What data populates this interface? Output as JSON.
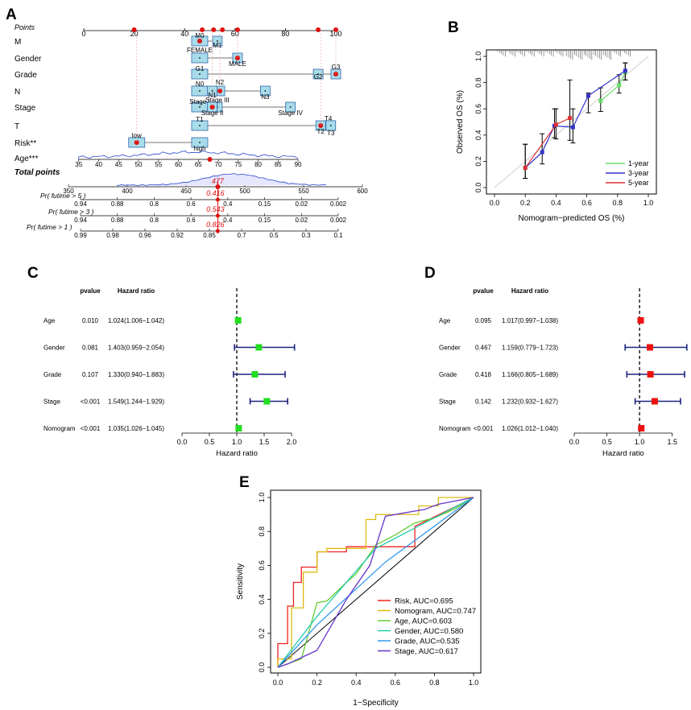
{
  "figure_title": "",
  "panels": {
    "A": "A",
    "B": "B",
    "C": "C",
    "D": "D",
    "E": "E"
  },
  "chart_data": [
    {
      "panel": "A",
      "type": "nomogram",
      "points_label": "Points",
      "points_ticks": [
        "0",
        "20",
        "40",
        "60",
        "80",
        "100"
      ],
      "variables": [
        {
          "name": "M",
          "levels": [
            "M0",
            "M1"
          ]
        },
        {
          "name": "Gender",
          "levels": [
            "FEMALE",
            "MALE"
          ]
        },
        {
          "name": "Grade",
          "levels": [
            "G1",
            "G2",
            "G3"
          ]
        },
        {
          "name": "N",
          "levels": [
            "N0",
            "N2",
            "N1",
            "N3"
          ]
        },
        {
          "name": "Stage",
          "levels": [
            "Stage I",
            "Stage III",
            "Stage II",
            "Stage IV"
          ]
        },
        {
          "name": "T",
          "levels": [
            "T1",
            "T4",
            "T2",
            "T3"
          ]
        },
        {
          "name": "Risk**",
          "levels": [
            "low",
            "high"
          ]
        },
        {
          "name": "Age***",
          "levels": [
            "35",
            "40",
            "45",
            "50",
            "55",
            "60",
            "65",
            "70",
            "75",
            "80",
            "85",
            "90"
          ]
        }
      ],
      "total_points_label": "Total points",
      "total_ticks": [
        "350",
        "400",
        "450",
        "500",
        "550",
        "600"
      ],
      "total_value": "477",
      "survival_axes": [
        {
          "label": "Pr( futime > 5 )",
          "ticks": [
            "0.94",
            "0.88",
            "0.8",
            "0.6",
            "0.4",
            "0.15",
            "0.02",
            "0.002"
          ],
          "value": "0.416"
        },
        {
          "label": "Pr( futime > 3 )",
          "ticks": [
            "0.94",
            "0.88",
            "0.8",
            "0.6",
            "0.4",
            "0.15",
            "0.02",
            "0.002"
          ],
          "value": "0.543"
        },
        {
          "label": "Pr( futime > 1 )",
          "ticks": [
            "0.99",
            "0.98",
            "0.96",
            "0.92",
            "0.85",
            "0.7",
            "0.5",
            "0.3",
            "0.1"
          ],
          "value": "0.826"
        }
      ]
    },
    {
      "panel": "B",
      "type": "line",
      "title": "",
      "xlabel": "Nomogram−predicted OS (%)",
      "ylabel": "Observed OS (%)",
      "xlim": [
        0,
        1
      ],
      "ylim": [
        0,
        1
      ],
      "xticks": [
        "0.0",
        "0.2",
        "0.4",
        "0.6",
        "0.8",
        "1.0"
      ],
      "yticks": [
        "0.0",
        "0.2",
        "0.4",
        "0.6",
        "0.8",
        "1.0"
      ],
      "series": [
        {
          "name": "1-year",
          "color": "#66dd66",
          "x": [
            0.69,
            0.81,
            0.85
          ],
          "y": [
            0.66,
            0.78,
            0.88
          ],
          "err_lo": [
            0.58,
            0.72,
            0.82
          ],
          "err_hi": [
            0.76,
            0.86,
            0.95
          ]
        },
        {
          "name": "3-year",
          "color": "#3333cc",
          "x": [
            0.2,
            0.31,
            0.39,
            0.51,
            0.61,
            0.85
          ],
          "y": [
            0.15,
            0.27,
            0.47,
            0.46,
            0.7,
            0.89
          ],
          "err_lo": [
            0.07,
            0.18,
            0.38,
            0.34,
            0.57,
            0.82
          ],
          "err_hi": [
            0.33,
            0.41,
            0.6,
            0.6,
            0.72,
            0.95
          ]
        },
        {
          "name": "5-year",
          "color": "#dd3333",
          "x": [
            0.2,
            0.4,
            0.49
          ],
          "y": [
            0.15,
            0.48,
            0.53
          ],
          "err_lo": [
            0.07,
            0.37,
            0.36
          ],
          "err_hi": [
            0.33,
            0.6,
            0.82
          ]
        }
      ]
    },
    {
      "panel": "C",
      "type": "forest",
      "pvalue_header": "pvalue",
      "hr_header": "Hazard ratio",
      "xlabel": "Hazard ratio",
      "xlim": [
        0,
        2.0
      ],
      "xticks": [
        "0.0",
        "0.5",
        "1.0",
        "1.5",
        "2.0"
      ],
      "marker_color": "#22dd22",
      "rows": [
        {
          "name": "Age",
          "p": "0.010",
          "text": "1.024(1.006−1.042)",
          "hr": 1.024,
          "lo": 1.006,
          "hi": 1.042
        },
        {
          "name": "Gender",
          "p": "0.081",
          "text": "1.403(0.959−2.054)",
          "hr": 1.403,
          "lo": 0.959,
          "hi": 2.054
        },
        {
          "name": "Grade",
          "p": "0.107",
          "text": "1.330(0.940−1.883)",
          "hr": 1.33,
          "lo": 0.94,
          "hi": 1.883
        },
        {
          "name": "Stage",
          "p": "<0.001",
          "text": "1.549(1.244−1.929)",
          "hr": 1.549,
          "lo": 1.244,
          "hi": 1.929
        },
        {
          "name": "Nomogram",
          "p": "<0.001",
          "text": "1.035(1.026−1.045)",
          "hr": 1.035,
          "lo": 1.026,
          "hi": 1.045
        }
      ]
    },
    {
      "panel": "D",
      "type": "forest",
      "pvalue_header": "pvalue",
      "hr_header": "Hazard ratio",
      "xlabel": "Hazard ratio",
      "xlim": [
        0,
        1.75
      ],
      "xticks": [
        "0.0",
        "0.5",
        "1.0",
        "1.5"
      ],
      "marker_color": "#ee1111",
      "rows": [
        {
          "name": "Age",
          "p": "0.095",
          "text": "1.017(0.997−1.038)",
          "hr": 1.017,
          "lo": 0.997,
          "hi": 1.038
        },
        {
          "name": "Gender",
          "p": "0.467",
          "text": "1.159(0.779−1.723)",
          "hr": 1.159,
          "lo": 0.779,
          "hi": 1.723
        },
        {
          "name": "Grade",
          "p": "0.418",
          "text": "1.166(0.805−1.689)",
          "hr": 1.166,
          "lo": 0.805,
          "hi": 1.689
        },
        {
          "name": "Stage",
          "p": "0.142",
          "text": "1.232(0.932−1.627)",
          "hr": 1.232,
          "lo": 0.932,
          "hi": 1.627
        },
        {
          "name": "Nomogram",
          "p": "<0.001",
          "text": "1.026(1.012−1.040)",
          "hr": 1.026,
          "lo": 1.012,
          "hi": 1.04
        }
      ]
    },
    {
      "panel": "E",
      "type": "line",
      "title": "",
      "xlabel": "1−Specificity",
      "ylabel": "Sensitivity",
      "xlim": [
        0,
        1
      ],
      "ylim": [
        0,
        1
      ],
      "xticks": [
        "0.0",
        "0.2",
        "0.4",
        "0.6",
        "0.8",
        "1.0"
      ],
      "yticks": [
        "0.0",
        "0.2",
        "0.4",
        "0.6",
        "0.8",
        "1.0"
      ],
      "series": [
        {
          "name": "Risk, AUC=0.695",
          "color": "#ee2222",
          "x": [
            0,
            0,
            0.05,
            0.05,
            0.08,
            0.08,
            0.12,
            0.12,
            0.2,
            0.2,
            0.35,
            0.35,
            0.7,
            0.7,
            0.95,
            1.0
          ],
          "y": [
            0,
            0.14,
            0.14,
            0.36,
            0.36,
            0.5,
            0.5,
            0.59,
            0.59,
            0.68,
            0.68,
            0.71,
            0.71,
            0.83,
            0.97,
            1.0
          ]
        },
        {
          "name": "Nomogram, AUC=0.747",
          "color": "#ddbb11",
          "x": [
            0,
            0,
            0.07,
            0.07,
            0.13,
            0.13,
            0.2,
            0.2,
            0.25,
            0.25,
            0.45,
            0.45,
            0.5,
            0.5,
            0.72,
            0.72,
            0.82,
            0.82,
            1.0
          ],
          "y": [
            0,
            0.05,
            0.05,
            0.35,
            0.35,
            0.56,
            0.56,
            0.68,
            0.68,
            0.7,
            0.7,
            0.87,
            0.87,
            0.9,
            0.9,
            0.95,
            0.95,
            1.0,
            1.0
          ]
        },
        {
          "name": "Age, AUC=0.603",
          "color": "#66cc33",
          "x": [
            0,
            0.05,
            0.12,
            0.2,
            0.25,
            0.35,
            0.4,
            0.5,
            0.6,
            0.7,
            0.8,
            0.9,
            1.0
          ],
          "y": [
            0,
            0.02,
            0.05,
            0.38,
            0.39,
            0.5,
            0.55,
            0.72,
            0.78,
            0.85,
            0.88,
            0.93,
            1.0
          ]
        },
        {
          "name": "Gender, AUC=0.580",
          "color": "#22ccaa",
          "x": [
            0,
            0.2,
            0.5,
            1.0
          ],
          "y": [
            0,
            0.3,
            0.7,
            1.0
          ]
        },
        {
          "name": "Grade, AUC=0.535",
          "color": "#3399ee",
          "x": [
            0,
            0.2,
            0.55,
            1.0
          ],
          "y": [
            0,
            0.25,
            0.62,
            1.0
          ]
        },
        {
          "name": "Stage, AUC=0.617",
          "color": "#6633cc",
          "x": [
            0,
            0.05,
            0.2,
            0.35,
            0.47,
            0.55,
            0.75,
            0.82,
            1.0
          ],
          "y": [
            0,
            0.02,
            0.1,
            0.4,
            0.6,
            0.89,
            0.93,
            0.96,
            1.0
          ]
        }
      ]
    }
  ]
}
